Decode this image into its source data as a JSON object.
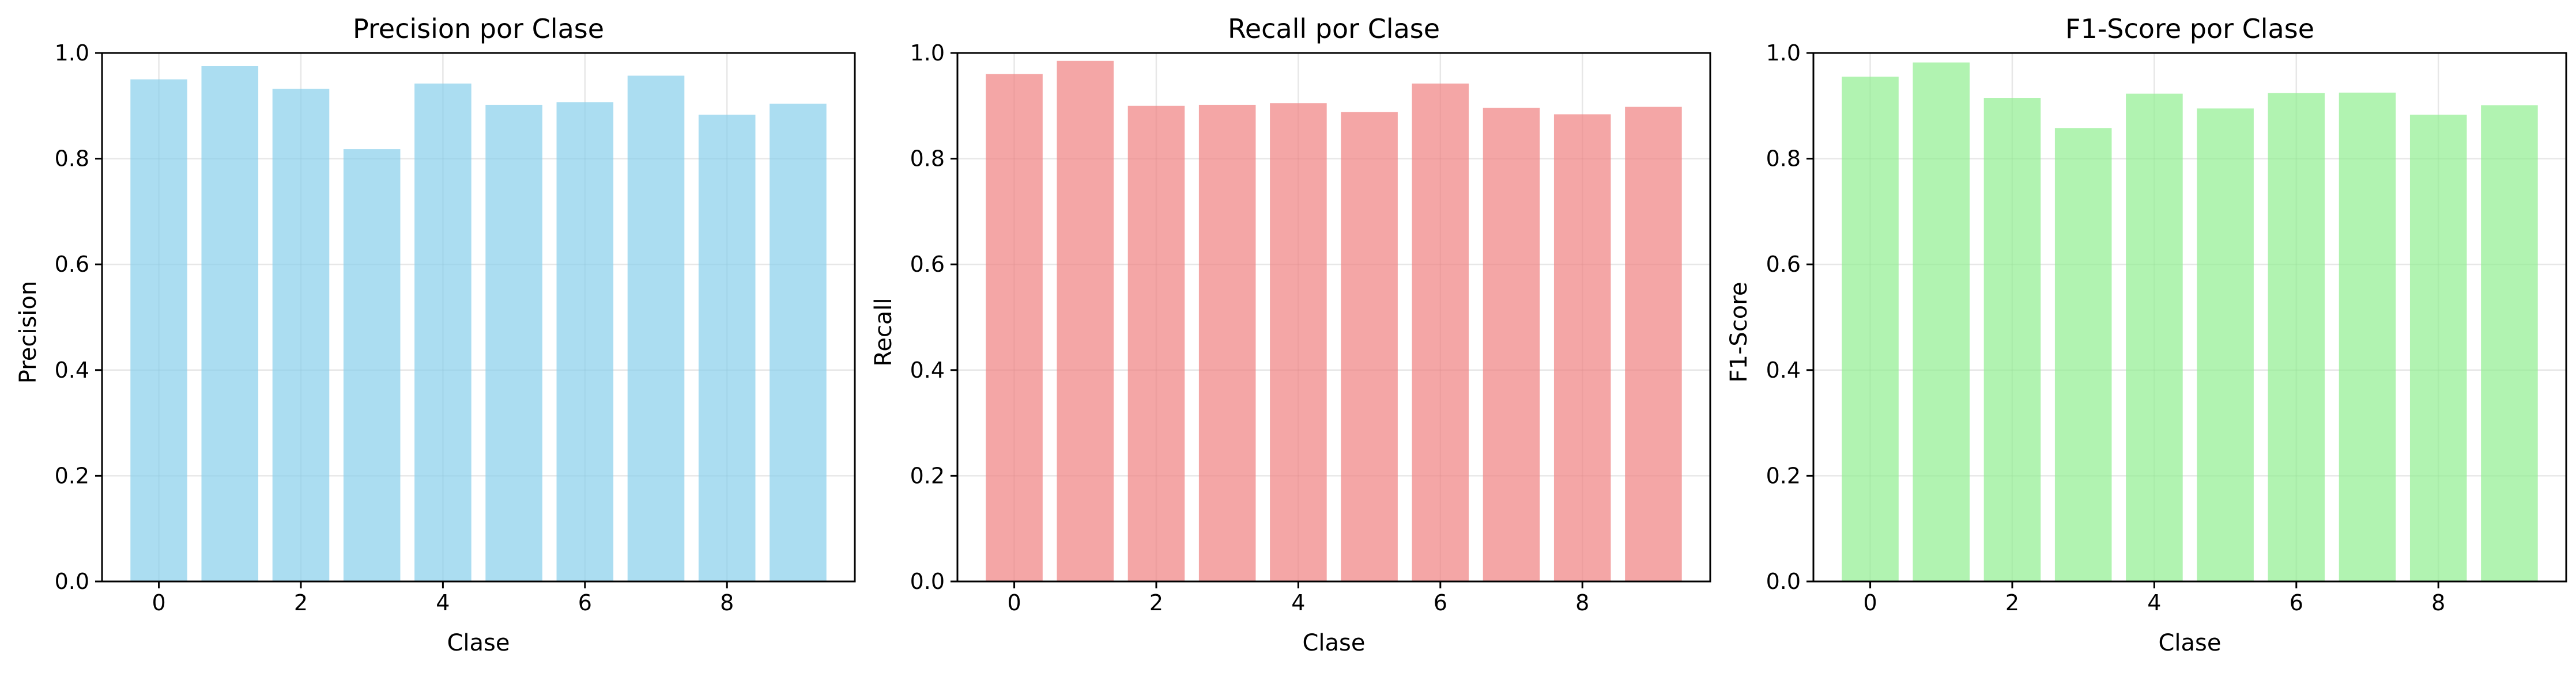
{
  "figure": {
    "background": "#ffffff"
  },
  "chart_data": [
    {
      "type": "bar",
      "title": "Precision por Clase",
      "xlabel": "Clase",
      "ylabel": "Precision",
      "categories": [
        0,
        1,
        2,
        3,
        4,
        5,
        6,
        7,
        8,
        9
      ],
      "values": [
        0.95,
        0.975,
        0.932,
        0.818,
        0.942,
        0.902,
        0.907,
        0.957,
        0.883,
        0.904
      ],
      "xticks": [
        "0",
        "2",
        "4",
        "6",
        "8"
      ],
      "yticks": [
        "0.0",
        "0.2",
        "0.4",
        "0.6",
        "0.8",
        "1.0"
      ],
      "ylim": [
        0,
        1.0
      ],
      "xlim": [
        -0.8,
        9.8
      ],
      "grid": true,
      "color": "#87ceeb",
      "alpha": 0.7
    },
    {
      "type": "bar",
      "title": "Recall por Clase",
      "xlabel": "Clase",
      "ylabel": "Recall",
      "categories": [
        0,
        1,
        2,
        3,
        4,
        5,
        6,
        7,
        8,
        9
      ],
      "values": [
        0.96,
        0.985,
        0.9,
        0.902,
        0.905,
        0.888,
        0.942,
        0.896,
        0.884,
        0.898
      ],
      "xticks": [
        "0",
        "2",
        "4",
        "6",
        "8"
      ],
      "yticks": [
        "0.0",
        "0.2",
        "0.4",
        "0.6",
        "0.8",
        "1.0"
      ],
      "ylim": [
        0,
        1.0
      ],
      "xlim": [
        -0.8,
        9.8
      ],
      "grid": true,
      "color": "#f08080",
      "alpha": 0.7
    },
    {
      "type": "bar",
      "title": "F1-Score por Clase",
      "xlabel": "Clase",
      "ylabel": "F1-Score",
      "categories": [
        0,
        1,
        2,
        3,
        4,
        5,
        6,
        7,
        8,
        9
      ],
      "values": [
        0.955,
        0.982,
        0.915,
        0.858,
        0.923,
        0.895,
        0.924,
        0.925,
        0.883,
        0.901
      ],
      "xticks": [
        "0",
        "2",
        "4",
        "6",
        "8"
      ],
      "yticks": [
        "0.0",
        "0.2",
        "0.4",
        "0.6",
        "0.8",
        "1.0"
      ],
      "ylim": [
        0,
        1.0
      ],
      "xlim": [
        -0.8,
        9.8
      ],
      "grid": true,
      "color": "#90ee90",
      "alpha": 0.7
    }
  ]
}
